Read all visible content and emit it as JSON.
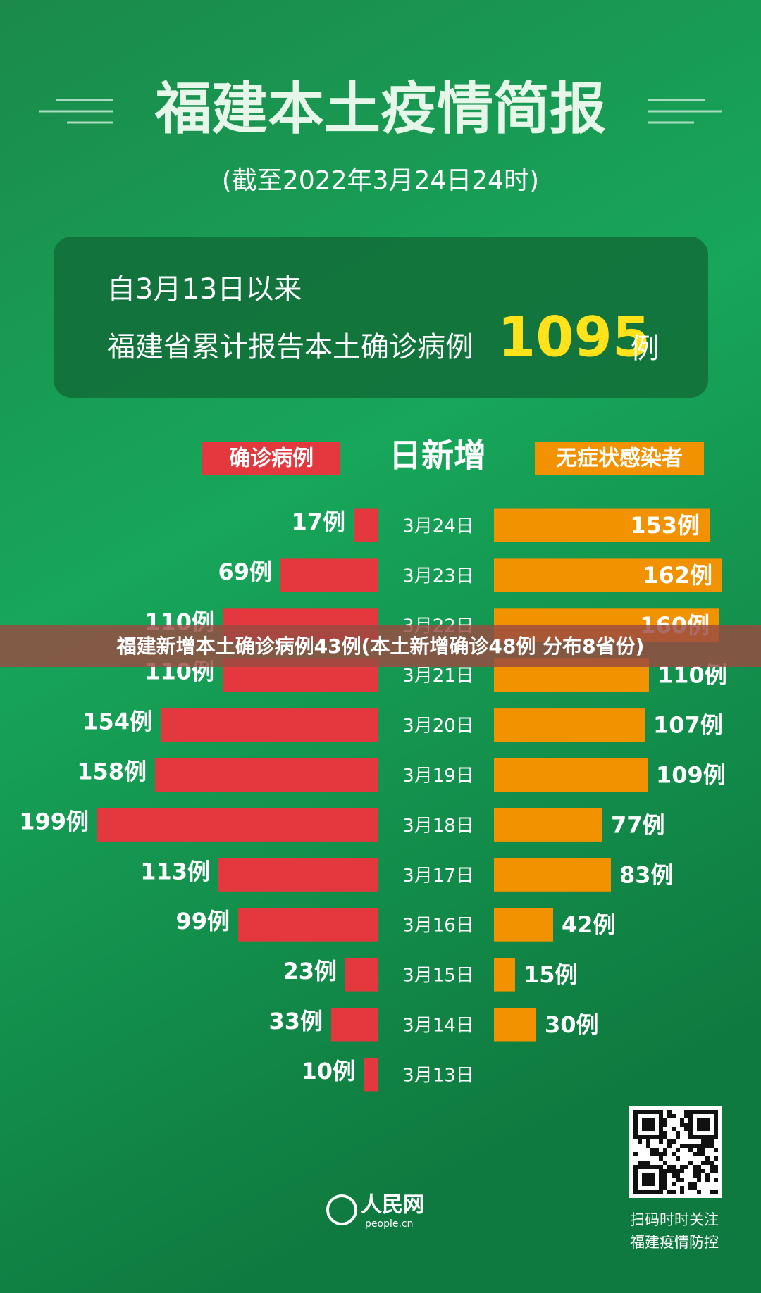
{
  "header": {
    "title": "福建本土疫情简报",
    "subtitle": "(截至2022年3月24日24时)"
  },
  "summary": {
    "line1": "自3月13日以来",
    "line2": "福建省累计报告本土确诊病例",
    "total": 1095,
    "unit": "例"
  },
  "chart_data": {
    "type": "butterfly-bar",
    "title": "日新增",
    "categories": [
      "3月24日",
      "3月23日",
      "3月22日",
      "3月21日",
      "3月20日",
      "3月19日",
      "3月18日",
      "3月17日",
      "3月16日",
      "3月15日",
      "3月14日",
      "3月13日"
    ],
    "series": [
      {
        "name": "确诊病例",
        "color": "#e3393e",
        "values": [
          17,
          69,
          110,
          110,
          154,
          158,
          199,
          113,
          99,
          23,
          33,
          10
        ],
        "value_labels": [
          "17例",
          "69例",
          "110例",
          "110例",
          "154例",
          "158例",
          "199例",
          "113例",
          "99例",
          "23例",
          "33例",
          "10例"
        ]
      },
      {
        "name": "无症状感染者",
        "color": "#f39200",
        "values": [
          153,
          162,
          160,
          110,
          107,
          109,
          77,
          83,
          42,
          15,
          30,
          null
        ],
        "value_labels": [
          "153例",
          "162例",
          "160例",
          "110例",
          "107例",
          "109例",
          "77例",
          "83例",
          "42例",
          "15例",
          "30例",
          null
        ]
      }
    ]
  },
  "banner": "福建新增本土确诊病例43例(本土新增确诊48例 分布8省份)",
  "footer": {
    "logo": "人民网",
    "logo_url": "people.cn",
    "qr_line1": "扫码时时关注",
    "qr_line2": "福建疫情防控"
  }
}
